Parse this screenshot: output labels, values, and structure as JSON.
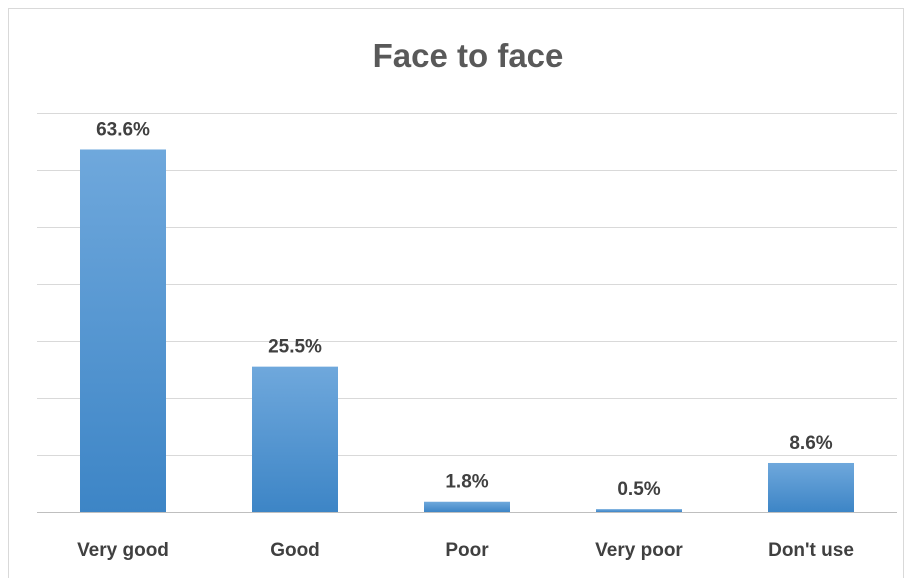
{
  "chart_data": {
    "type": "bar",
    "title": "Face to face",
    "xlabel": "",
    "ylabel": "",
    "categories": [
      "Very good",
      "Good",
      "Poor",
      "Very poor",
      "Don't use"
    ],
    "values": [
      63.6,
      25.5,
      1.8,
      0.5,
      8.6
    ],
    "data_labels": [
      "63.6%",
      "25.5%",
      "1.8%",
      "0.5%",
      "8.6%"
    ],
    "ylim": [
      0,
      70
    ],
    "y_tick_step": 10,
    "grid": true,
    "legend": "none",
    "bar_color_top": "#6fa8dc",
    "bar_color_bottom": "#3d85c6"
  }
}
